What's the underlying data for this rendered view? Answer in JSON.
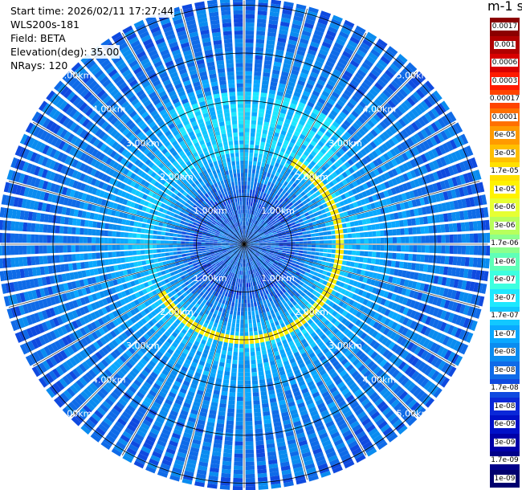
{
  "info": {
    "start_time": "Start time: 2026/02/11 17:27:44",
    "instrument": "WLS200s-181",
    "field": "Field: BETA",
    "elevation": "Elevation(deg): 35.00",
    "nrays": "NRays: 120"
  },
  "colorbar": {
    "title": "m-1 sr-1",
    "labels": [
      "0.0017",
      "0.001",
      "0.0006",
      "0.0003",
      "0.00017",
      "0.0001",
      "6e-05",
      "3e-05",
      "1.7e-05",
      "1e-05",
      "6e-06",
      "3e-06",
      "1.7e-06",
      "1e-06",
      "6e-07",
      "3e-07",
      "1.7e-07",
      "1e-07",
      "6e-08",
      "3e-08",
      "1.7e-08",
      "1e-08",
      "6e-09",
      "3e-09",
      "1.7e-09",
      "1e-09"
    ],
    "colors": [
      "#8b0000",
      "#b00000",
      "#d80000",
      "#ff1a00",
      "#ff4400",
      "#ff7000",
      "#ff9a00",
      "#ffbf00",
      "#ffe000",
      "#fff200",
      "#e6ff33",
      "#b8ff5c",
      "#8cff8c",
      "#5fffb8",
      "#3dffe0",
      "#1ee8ff",
      "#12c8ff",
      "#0aa8ff",
      "#0a8cf0",
      "#0f6be8",
      "#0f4ae0",
      "#0a28d8",
      "#0010c8",
      "#0000a8",
      "#00008a",
      "#00006e"
    ]
  },
  "chart_data": {
    "type": "heatmap",
    "projection": "polar (PPI scan)",
    "field": "BETA",
    "elevation_deg": 35.0,
    "nrays": 120,
    "range_rings_km": [
      1,
      2,
      3,
      4,
      5
    ],
    "ring_labels": [
      "1.00km",
      "2.00km",
      "3.00km",
      "4.00km",
      "5.00km"
    ],
    "color_scale": "log",
    "value_range": [
      1e-09,
      0.0017
    ],
    "range_profile": [
      {
        "range_km": 0.5,
        "beta": 3e-08
      },
      {
        "range_km": 1.0,
        "beta": 2e-08
      },
      {
        "range_km": 1.5,
        "beta": 6e-08
      },
      {
        "range_km": 2.0,
        "beta": 1.7e-07
      },
      {
        "range_km": 3.0,
        "beta": 6e-08
      },
      {
        "range_km": 4.0,
        "beta": 4e-08
      },
      {
        "range_km": 5.0,
        "beta": 3e-08
      },
      {
        "range_km": 5.7,
        "beta": 3e-08
      }
    ],
    "aerosol_layer": {
      "range_km": 2.0,
      "beta": 1.2e-05,
      "azimuth_start_deg": 30,
      "azimuth_end_deg": 240
    },
    "elevated_sector": {
      "azimuth_start_deg": 330,
      "azimuth_end_deg": 45,
      "range_km": [
        2.0,
        3.2
      ],
      "beta": 2e-07
    }
  }
}
